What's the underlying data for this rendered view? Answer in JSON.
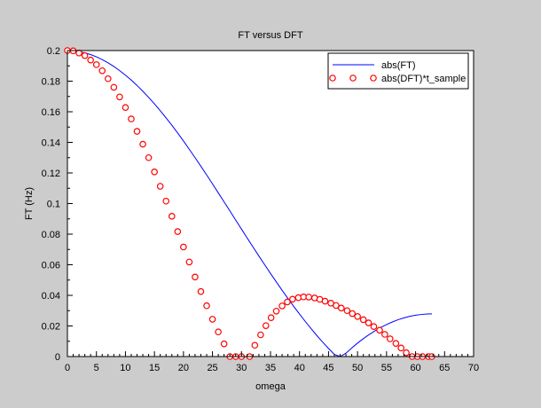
{
  "chart_data": {
    "type": "line",
    "title": "FT versus DFT",
    "xlabel": "omega",
    "ylabel": "FT (Hz)",
    "xlim": [
      0,
      70
    ],
    "ylim": [
      0,
      0.2
    ],
    "x_ticks": [
      0,
      5,
      10,
      15,
      20,
      25,
      30,
      35,
      40,
      45,
      50,
      55,
      60,
      65,
      70
    ],
    "x_tick_labels": [
      "0",
      "5",
      "10",
      "15",
      "20",
      "25",
      "30",
      "35",
      "40",
      "45",
      "50",
      "55",
      "60",
      "65",
      "70"
    ],
    "y_ticks": [
      0,
      0.02,
      0.04,
      0.06,
      0.08,
      0.1,
      0.12,
      0.14,
      0.16,
      0.18,
      0.2
    ],
    "y_tick_labels": [
      "0",
      "0.02",
      "0.04",
      "0.06",
      "0.08",
      "0.1",
      "0.12",
      "0.14",
      "0.16",
      "0.18",
      "0.2"
    ],
    "grid": false,
    "legend_position": "top-right",
    "series": [
      {
        "name": "abs(FT)",
        "style": "line",
        "color": "#0000ff",
        "x": [
          0,
          1,
          2,
          3,
          4,
          5,
          6,
          7,
          8,
          9,
          10,
          11,
          12,
          13,
          14,
          15,
          16,
          17,
          18,
          19,
          20,
          21,
          22,
          23,
          24,
          25,
          26,
          27,
          28,
          29,
          30,
          31,
          31.42,
          32,
          33,
          34,
          35,
          36,
          37,
          38,
          39,
          40,
          41,
          42,
          43,
          44,
          45,
          46,
          47,
          48,
          49,
          50,
          51,
          52,
          53,
          54,
          55,
          56,
          57,
          58,
          59,
          60,
          61,
          62,
          62.83
        ],
        "y": [
          0.2,
          0.1998,
          0.1993,
          0.1985,
          0.1974,
          0.1959,
          0.1941,
          0.192,
          0.1896,
          0.1869,
          0.1839,
          0.1807,
          0.1772,
          0.1734,
          0.1694,
          0.1652,
          0.1607,
          0.156,
          0.1512,
          0.1461,
          0.1409,
          0.1355,
          0.13,
          0.1244,
          0.1187,
          0.1129,
          0.107,
          0.1011,
          0.0952,
          0.0892,
          0.0833,
          0.0774,
          0.0749,
          0.0715,
          0.0657,
          0.06,
          0.0543,
          0.0488,
          0.0433,
          0.038,
          0.0328,
          0.0278,
          0.0229,
          0.0182,
          0.0137,
          0.0094,
          0.0053,
          0.0014,
          0.0,
          0.0022,
          0.0056,
          0.0088,
          0.0117,
          0.0144,
          0.0168,
          0.019,
          0.0209,
          0.0226,
          0.0241,
          0.0253,
          0.0263,
          0.027,
          0.0275,
          0.0278,
          0.0279
        ]
      },
      {
        "name": "abs(DFT)*t_sample",
        "style": "markers",
        "marker": "circle",
        "edge_color": "#ff0000",
        "face_color": "#ffffff",
        "x": [
          0,
          1.0,
          2.0,
          3.0,
          4.0,
          5.0,
          6.0,
          7.0,
          8.0,
          9.0,
          10.0,
          11.0,
          12.0,
          13.0,
          14.0,
          15.0,
          16.0,
          17.0,
          18.0,
          19.0,
          20.0,
          21.0,
          22.0,
          23.0,
          24.0,
          25.0,
          26.0,
          27.0,
          28.0,
          29.0,
          30.0,
          31.4,
          32.3,
          33.3,
          34.2,
          35.1,
          36.0,
          37.0,
          37.9,
          38.8,
          39.8,
          40.7,
          41.6,
          42.6,
          43.5,
          44.4,
          45.4,
          46.3,
          47.2,
          48.2,
          49.1,
          50.0,
          51.0,
          51.9,
          52.8,
          53.8,
          54.7,
          55.6,
          56.6,
          57.5,
          58.4,
          59.4,
          60.3,
          61.2,
          62.2,
          62.8
        ],
        "y": [
          0.2,
          0.1998,
          0.1984,
          0.1967,
          0.1938,
          0.1908,
          0.1868,
          0.1816,
          0.176,
          0.1697,
          0.1628,
          0.1553,
          0.1472,
          0.1388,
          0.13,
          0.1207,
          0.1113,
          0.1016,
          0.0917,
          0.0817,
          0.0716,
          0.0618,
          0.052,
          0.0425,
          0.0332,
          0.0244,
          0.0161,
          0.0083,
          0.0,
          0.0,
          0.0,
          0.0,
          0.0074,
          0.0142,
          0.0202,
          0.0254,
          0.0297,
          0.0331,
          0.0357,
          0.0375,
          0.0385,
          0.039,
          0.0389,
          0.0383,
          0.0374,
          0.0362,
          0.0349,
          0.0334,
          0.0317,
          0.03,
          0.0281,
          0.0262,
          0.0241,
          0.022,
          0.0196,
          0.0172,
          0.0145,
          0.0116,
          0.0086,
          0.0056,
          0.0025,
          0.0,
          0.0,
          0.0,
          0.0,
          0.0
        ]
      }
    ]
  }
}
